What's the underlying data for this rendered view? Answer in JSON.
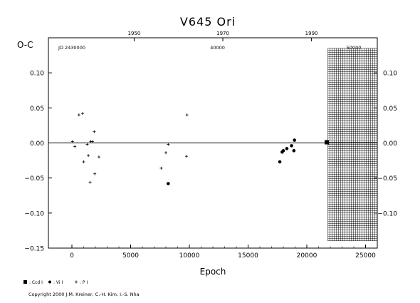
{
  "chart_data": {
    "type": "scatter",
    "title": "V645  Ori",
    "xlabel": "Epoch",
    "ylabel": "O-C",
    "xlim": [
      -2000,
      26000
    ],
    "ylim": [
      -0.15,
      0.15
    ],
    "x_ticks": [
      0,
      5000,
      10000,
      15000,
      20000,
      25000
    ],
    "x_tick_labels": [
      "0",
      "5000",
      "10000",
      "15000",
      "20000",
      "25000"
    ],
    "y_ticks": [
      -0.15,
      -0.1,
      -0.05,
      0.0,
      0.05,
      0.1
    ],
    "y_tick_labels": [
      "−0.15",
      "−0.10",
      "−0.05",
      "0.00",
      "0.05",
      "0.10"
    ],
    "right_y_ticks": [
      -0.1,
      -0.05,
      0.0,
      0.05,
      0.1
    ],
    "right_y_tick_labels": [
      "−0.10",
      "−0.05",
      "0.00",
      "0.05",
      "0.10"
    ],
    "top_year_ticks": [
      {
        "label": "1950",
        "epoch": 5300
      },
      {
        "label": "1970",
        "epoch": 12850
      },
      {
        "label": "1990",
        "epoch": 20400
      }
    ],
    "top_jd_ticks": [
      {
        "label": "JD  2430000",
        "epoch": 0
      },
      {
        "label": "40000",
        "epoch": 12400
      },
      {
        "label": "50000",
        "epoch": 24000
      }
    ],
    "zero_line": 0.0,
    "hatched_region": {
      "from_epoch": 21800,
      "to_epoch": 26000,
      "from_oc": -0.14,
      "to_oc": 0.135
    },
    "series": [
      {
        "name": ": Ccd I",
        "marker": "square",
        "points": [
          [
            21700,
            0.001
          ]
        ]
      },
      {
        "name": ": Vi I",
        "marker": "circle",
        "points": [
          [
            8200,
            -0.058
          ],
          [
            17700,
            -0.027
          ],
          [
            17900,
            -0.013
          ],
          [
            18000,
            -0.011
          ],
          [
            18300,
            -0.008
          ],
          [
            18700,
            -0.004
          ],
          [
            18900,
            -0.011
          ],
          [
            18950,
            0.004
          ]
        ]
      },
      {
        "name": ": P I",
        "marker": "plus",
        "points": [
          [
            50,
            0.002
          ],
          [
            250,
            -0.005
          ],
          [
            600,
            0.04
          ],
          [
            900,
            0.042
          ],
          [
            1000,
            -0.027
          ],
          [
            1300,
            -0.002
          ],
          [
            1400,
            -0.018
          ],
          [
            1550,
            -0.056
          ],
          [
            1600,
            0.002
          ],
          [
            1750,
            0.002
          ],
          [
            1900,
            0.016
          ],
          [
            1950,
            -0.044
          ],
          [
            2300,
            -0.02
          ],
          [
            7600,
            -0.036
          ],
          [
            8000,
            -0.014
          ],
          [
            8200,
            -0.002
          ],
          [
            9750,
            -0.019
          ],
          [
            9800,
            0.04
          ]
        ]
      }
    ]
  },
  "copyright": "Copyright 2000 J.M. Kreiner, C.-H. Kim, I.-S. Nha"
}
